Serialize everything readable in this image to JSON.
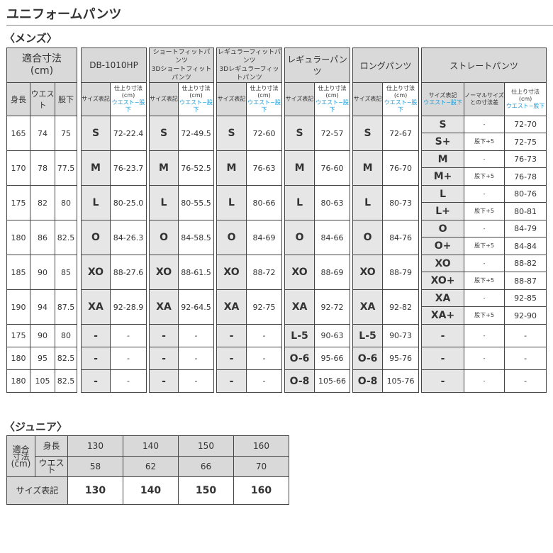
{
  "title": "ユニフォームパンツ",
  "mens_label": "〈メンズ〉",
  "junior_label": "〈ジュニア〉",
  "colors": {
    "header_bg": "#d9d9d9",
    "size_bg": "#e6e6e6",
    "accent_blue": "#1a9ad6"
  },
  "mens": {
    "fit_label": "適合寸法",
    "fit_unit": "(cm)",
    "fit_cols": [
      "身長",
      "ウエスト",
      "股下"
    ],
    "products": [
      {
        "lines": [
          "DB-1010HP"
        ]
      },
      {
        "lines": [
          "ショートフィットパンツ",
          "3Dショートフィットパンツ"
        ]
      },
      {
        "lines": [
          "レギュラーフィットパンツ",
          "3Dレギュラーフィットパンツ"
        ]
      },
      {
        "lines": [
          "レギュラーパンツ"
        ]
      },
      {
        "lines": [
          "ロングパンツ"
        ]
      },
      {
        "lines": [
          "ストレートパンツ"
        ]
      }
    ],
    "size_label": "サイズ表記",
    "finish_label": "仕上り寸法",
    "finish_unit": "(cm)",
    "waist_inseam": "ウエスト−股下",
    "diff_label_1": "ノーマルサイズ",
    "diff_label_2": "との寸法差",
    "rows": [
      {
        "fit": [
          "165",
          "74",
          "75"
        ],
        "p": [
          [
            "S",
            "72-22.4"
          ],
          [
            "S",
            "72-49.5"
          ],
          [
            "S",
            "72-60"
          ],
          [
            "S",
            "72-57"
          ],
          [
            "S",
            "72-67"
          ]
        ],
        "straight": [
          [
            "S",
            "-",
            "72-70"
          ],
          [
            "S+",
            "股下+5",
            "72-75"
          ]
        ]
      },
      {
        "fit": [
          "170",
          "78",
          "77.5"
        ],
        "p": [
          [
            "M",
            "76-23.7"
          ],
          [
            "M",
            "76-52.5"
          ],
          [
            "M",
            "76-63"
          ],
          [
            "M",
            "76-60"
          ],
          [
            "M",
            "76-70"
          ]
        ],
        "straight": [
          [
            "M",
            "-",
            "76-73"
          ],
          [
            "M+",
            "股下+5",
            "76-78"
          ]
        ]
      },
      {
        "fit": [
          "175",
          "82",
          "80"
        ],
        "p": [
          [
            "L",
            "80-25.0"
          ],
          [
            "L",
            "80-55.5"
          ],
          [
            "L",
            "80-66"
          ],
          [
            "L",
            "80-63"
          ],
          [
            "L",
            "80-73"
          ]
        ],
        "straight": [
          [
            "L",
            "-",
            "80-76"
          ],
          [
            "L+",
            "股下+5",
            "80-81"
          ]
        ]
      },
      {
        "fit": [
          "180",
          "86",
          "82.5"
        ],
        "p": [
          [
            "O",
            "84-26.3"
          ],
          [
            "O",
            "84-58.5"
          ],
          [
            "O",
            "84-69"
          ],
          [
            "O",
            "84-66"
          ],
          [
            "O",
            "84-76"
          ]
        ],
        "straight": [
          [
            "O",
            "-",
            "84-79"
          ],
          [
            "O+",
            "股下+5",
            "84-84"
          ]
        ]
      },
      {
        "fit": [
          "185",
          "90",
          "85"
        ],
        "p": [
          [
            "XO",
            "88-27.6"
          ],
          [
            "XO",
            "88-61.5"
          ],
          [
            "XO",
            "88-72"
          ],
          [
            "XO",
            "88-69"
          ],
          [
            "XO",
            "88-79"
          ]
        ],
        "straight": [
          [
            "XO",
            "-",
            "88-82"
          ],
          [
            "XO+",
            "股下+5",
            "88-87"
          ]
        ]
      },
      {
        "fit": [
          "190",
          "94",
          "87.5"
        ],
        "p": [
          [
            "XA",
            "92-28.9"
          ],
          [
            "XA",
            "92-64.5"
          ],
          [
            "XA",
            "92-75"
          ],
          [
            "XA",
            "92-72"
          ],
          [
            "XA",
            "92-82"
          ]
        ],
        "straight": [
          [
            "XA",
            "-",
            "92-85"
          ],
          [
            "XA+",
            "股下+5",
            "92-90"
          ]
        ]
      },
      {
        "fit": [
          "175",
          "90",
          "80"
        ],
        "p": [
          [
            "-",
            "-"
          ],
          [
            "-",
            "-"
          ],
          [
            "-",
            "-"
          ],
          [
            "L-5",
            "90-63"
          ],
          [
            "L-5",
            "90-73"
          ]
        ],
        "straight": [
          [
            "-",
            "-",
            "-"
          ]
        ]
      },
      {
        "fit": [
          "180",
          "95",
          "82.5"
        ],
        "p": [
          [
            "-",
            "-"
          ],
          [
            "-",
            "-"
          ],
          [
            "-",
            "-"
          ],
          [
            "O-6",
            "95-66"
          ],
          [
            "O-6",
            "95-76"
          ]
        ],
        "straight": [
          [
            "-",
            "-",
            "-"
          ]
        ]
      },
      {
        "fit": [
          "180",
          "105",
          "82.5"
        ],
        "p": [
          [
            "-",
            "-"
          ],
          [
            "-",
            "-"
          ],
          [
            "-",
            "-"
          ],
          [
            "O-8",
            "105-66"
          ],
          [
            "O-8",
            "105-76"
          ]
        ],
        "straight": [
          [
            "-",
            "-",
            "-"
          ]
        ]
      }
    ]
  },
  "junior": {
    "fit_label": [
      "適合",
      "寸法",
      "(cm)"
    ],
    "height_label": "身長",
    "waist_label": "ウエスト",
    "size_label": "サイズ表記",
    "heights": [
      "130",
      "140",
      "150",
      "160"
    ],
    "waists": [
      "58",
      "62",
      "66",
      "70"
    ],
    "sizes": [
      "130",
      "140",
      "150",
      "160"
    ]
  }
}
